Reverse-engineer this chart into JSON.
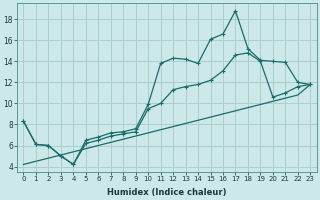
{
  "xlabel": "Humidex (Indice chaleur)",
  "xlim": [
    -0.5,
    23.5
  ],
  "ylim": [
    3.5,
    19.5
  ],
  "xticks": [
    0,
    1,
    2,
    3,
    4,
    5,
    6,
    7,
    8,
    9,
    10,
    11,
    12,
    13,
    14,
    15,
    16,
    17,
    18,
    19,
    20,
    21,
    22,
    23
  ],
  "yticks": [
    4,
    6,
    8,
    10,
    12,
    14,
    16,
    18
  ],
  "bg_color": "#cce8e8",
  "grid_color": "#aacece",
  "line_color": "#1a6b6b",
  "line1_x": [
    0,
    1,
    2,
    3,
    4,
    5,
    6,
    7,
    8,
    9,
    10,
    11,
    12,
    13,
    14,
    15,
    16,
    17,
    18,
    19,
    20,
    21,
    22,
    23
  ],
  "line1_y": [
    8.3,
    6.1,
    6.0,
    5.0,
    4.2,
    6.5,
    6.8,
    7.2,
    7.3,
    7.6,
    9.9,
    13.8,
    14.3,
    14.2,
    13.8,
    16.1,
    16.6,
    18.8,
    15.2,
    14.1,
    14.0,
    13.9,
    12.0,
    11.8
  ],
  "line2_x": [
    0,
    1,
    2,
    3,
    4,
    5,
    6,
    7,
    8,
    9,
    10,
    11,
    12,
    13,
    14,
    15,
    16,
    17,
    18,
    19,
    20,
    21,
    22,
    23
  ],
  "line2_y": [
    8.3,
    6.1,
    6.0,
    5.0,
    4.2,
    6.2,
    6.5,
    6.9,
    7.1,
    7.3,
    9.5,
    10.0,
    11.3,
    11.6,
    11.8,
    12.2,
    13.1,
    14.6,
    14.8,
    14.0,
    10.6,
    11.0,
    11.6,
    11.8
  ],
  "line3_x": [
    0,
    1,
    2,
    3,
    4,
    5,
    6,
    7,
    8,
    9,
    10,
    11,
    12,
    13,
    14,
    15,
    16,
    17,
    18,
    19,
    20,
    21,
    22,
    23
  ],
  "line3_y": [
    4.2,
    4.5,
    4.8,
    5.1,
    5.4,
    5.7,
    6.0,
    6.3,
    6.6,
    6.9,
    7.2,
    7.5,
    7.8,
    8.1,
    8.4,
    8.7,
    9.0,
    9.3,
    9.6,
    9.9,
    10.2,
    10.5,
    10.8,
    11.8
  ]
}
